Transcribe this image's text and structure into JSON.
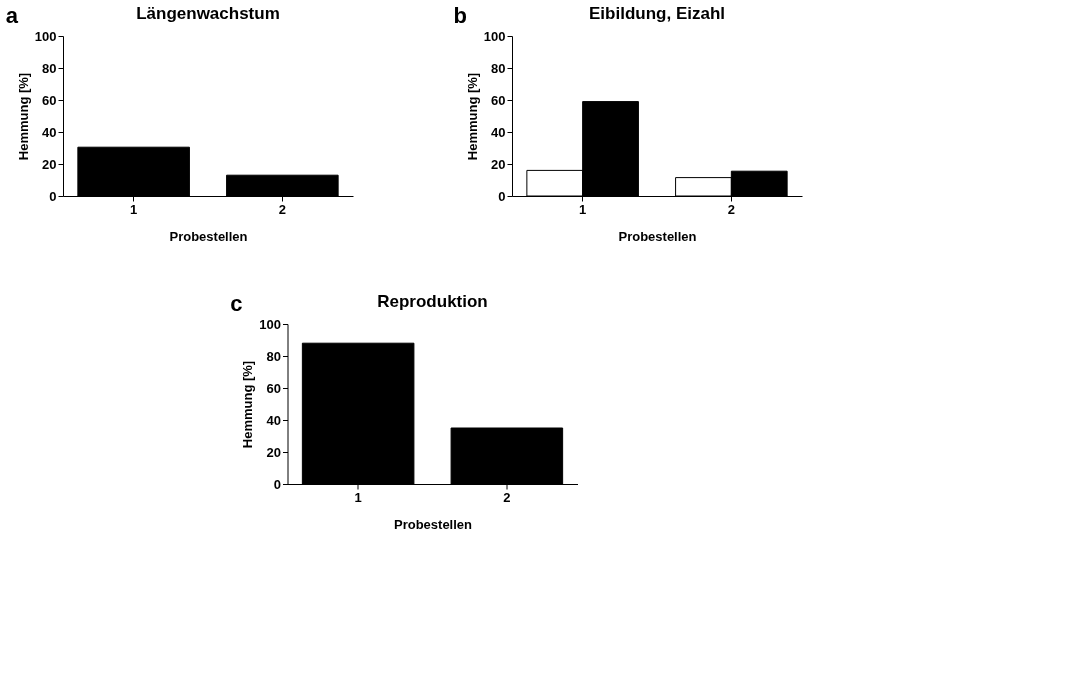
{
  "chart_data": [
    {
      "type": "bar",
      "title": "Längenwachstum",
      "xlabel": "Probestellen",
      "ylabel": "Hemmung [%]",
      "categories": [
        "1",
        "2"
      ],
      "annotations": [
        "a"
      ],
      "series": [
        {
          "color": "#000000",
          "values": [
            30.5,
            13
          ]
        }
      ],
      "ylim": [
        0,
        100
      ],
      "yticks": [
        0,
        20,
        40,
        60,
        80,
        100
      ],
      "grid": false,
      "legend": false
    },
    {
      "type": "bar",
      "title": "Eibildung, Eizahl",
      "xlabel": "Probestellen",
      "ylabel": "Hemmung [%]",
      "categories": [
        "1",
        "2"
      ],
      "annotations": [
        "b"
      ],
      "series": [
        {
          "color": "#ffffff",
          "values": [
            16,
            11.5
          ]
        },
        {
          "color": "#000000",
          "values": [
            59,
            15.5
          ]
        }
      ],
      "ylim": [
        0,
        100
      ],
      "yticks": [
        0,
        20,
        40,
        60,
        80,
        100
      ],
      "grid": false,
      "legend": false
    },
    {
      "type": "bar",
      "title": "Reproduktion",
      "xlabel": "Probestellen",
      "ylabel": "Hemmung [%]",
      "categories": [
        "1",
        "2"
      ],
      "annotations": [
        "c"
      ],
      "series": [
        {
          "color": "#000000",
          "values": [
            88,
            35
          ]
        }
      ],
      "ylim": [
        0,
        100
      ],
      "yticks": [
        0,
        20,
        40,
        60,
        80,
        100
      ],
      "grid": false,
      "legend": false
    }
  ]
}
